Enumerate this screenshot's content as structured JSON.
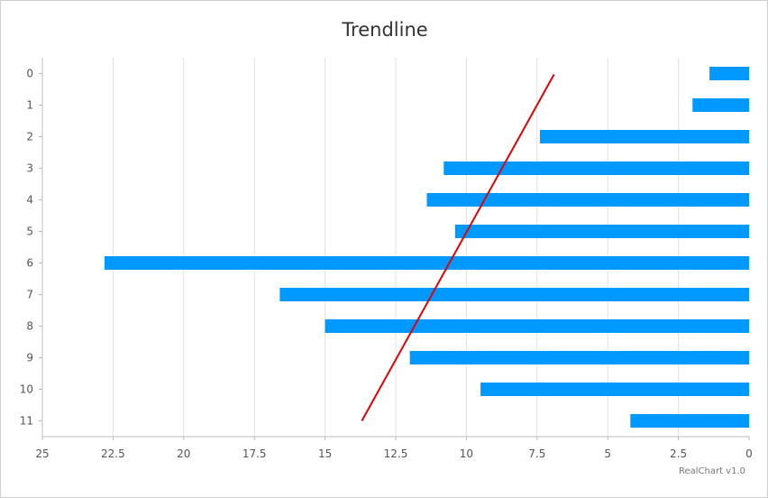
{
  "chart_data": {
    "type": "bar",
    "orientation": "horizontal",
    "x_axis_reversed": true,
    "title": "Trendline",
    "xlabel": "",
    "ylabel": "",
    "categories": [
      "0",
      "1",
      "2",
      "3",
      "4",
      "5",
      "6",
      "7",
      "8",
      "9",
      "10",
      "11"
    ],
    "values": [
      1.4,
      2.0,
      7.4,
      10.8,
      11.4,
      10.4,
      22.8,
      16.6,
      15.0,
      12.0,
      9.5,
      4.2
    ],
    "xlim": [
      0,
      25
    ],
    "x_ticks": [
      "25",
      "22.5",
      "20",
      "17.5",
      "15",
      "12.5",
      "10",
      "7.5",
      "5",
      "2.5",
      "0"
    ],
    "grid": true,
    "trendline": {
      "start": {
        "category": "0",
        "value": 6.9
      },
      "end": {
        "category": "11",
        "value": 13.7
      }
    },
    "colors": {
      "bar": "#0099ff",
      "trendline": "#e60000",
      "grid": "#e0e0e0",
      "axis": "#bbbbbb"
    }
  },
  "credit": "RealChart v1.0"
}
